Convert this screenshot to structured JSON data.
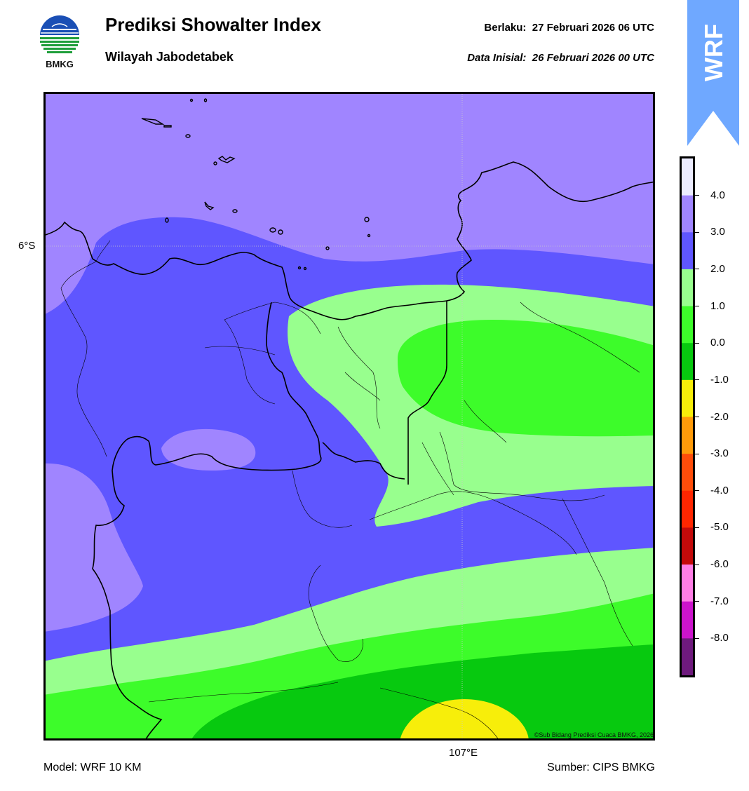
{
  "header": {
    "title": "Prediksi Showalter Index",
    "subtitle": "Wilayah Jabodetabek",
    "valid_label": "Berlaku:  27 Februari 2026 06 UTC",
    "init_label": "Data Inisial:  26 Februari 2026 00 UTC"
  },
  "logo": {
    "text": "BMKG",
    "icon": "bmkg-logo-icon"
  },
  "ribbon": {
    "text": "WRF",
    "color": "#6fa8ff"
  },
  "map": {
    "lat_label": "6°S",
    "lon_label": "107°E",
    "copyright": "©Sub Bidang Prediksi Cuaca BMKG, 2026"
  },
  "footer": {
    "model": "Model: WRF 10 KM",
    "source": "Sumber: CIPS BMKG"
  },
  "legend": {
    "ticks": [
      "4.0",
      "3.0",
      "2.0",
      "1.0",
      "0.0",
      "-1.0",
      "-2.0",
      "-3.0",
      "-4.0",
      "-5.0",
      "-6.0",
      "-7.0",
      "-8.0"
    ],
    "colors": [
      "#ececff",
      "#a085ff",
      "#5f56ff",
      "#98ff8e",
      "#3dfc2a",
      "#07c90f",
      "#f7ee0a",
      "#ff9b0a",
      "#ff4d0a",
      "#ff2600",
      "#c40a0a",
      "#ff7ee6",
      "#cc14cc",
      "#6e1a7d"
    ]
  }
}
